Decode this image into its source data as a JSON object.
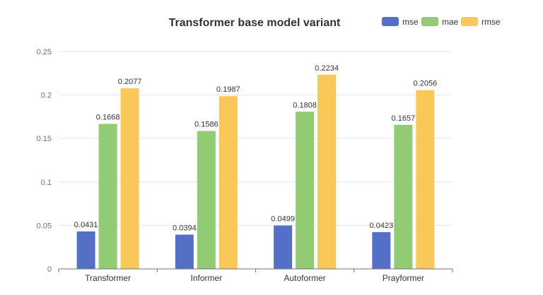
{
  "chart_data": {
    "type": "bar",
    "title": "Transformer base model variant",
    "categories": [
      "Transformer",
      "Informer",
      "Autoformer",
      "Prayformer"
    ],
    "series": [
      {
        "name": "mse",
        "color": "#5470c6",
        "values": [
          0.0431,
          0.0394,
          0.0499,
          0.0423
        ],
        "labels": [
          "0.0431",
          "0.0394",
          "0.0499",
          "0.0423"
        ]
      },
      {
        "name": "mae",
        "color": "#91cc75",
        "values": [
          0.1668,
          0.1586,
          0.1808,
          0.1657
        ],
        "labels": [
          "0.1668",
          "0.1586",
          "0.1808",
          "0.1657"
        ]
      },
      {
        "name": "rmse",
        "color": "#fac858",
        "values": [
          0.2077,
          0.1987,
          0.2234,
          0.2056
        ],
        "labels": [
          "0.2077",
          "0.1987",
          "0.2234",
          "0.2056"
        ]
      }
    ],
    "ylim": [
      0,
      0.25
    ],
    "yticks": [
      "0",
      "0.05",
      "0.1",
      "0.15",
      "0.2",
      "0.25"
    ],
    "xlabel": "",
    "ylabel": "",
    "grid": true,
    "legend_position": "top-right"
  }
}
